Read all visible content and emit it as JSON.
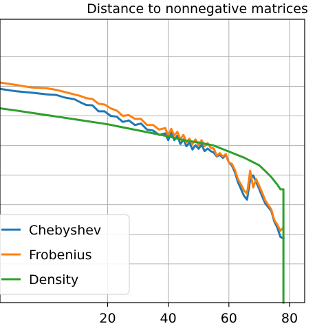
{
  "chart_data": {
    "type": "line",
    "title": "Distance to nonnegative matrices",
    "xlabel": "",
    "ylabel": "",
    "xlim": [
      -15.5,
      85
    ],
    "ylim": [
      -11.8,
      10.6
    ],
    "x_ticks": [
      20,
      40,
      60,
      80
    ],
    "x_tick_labels": [
      "20",
      "40",
      "60",
      "80"
    ],
    "y_gridlines": [
      7.64,
      5.3,
      2.96,
      0.62,
      -1.72,
      -4.06,
      -6.4,
      -8.74
    ],
    "grid": true,
    "legend": {
      "placement": "lower-left"
    },
    "series": [
      {
        "name": "Chebyshev",
        "color": "#1f77b4",
        "x": [
          -15.5,
          -10,
          -5,
          0,
          3,
          6,
          9,
          11,
          13,
          15,
          17,
          19,
          21,
          23,
          25,
          27,
          29,
          31,
          33,
          35,
          37,
          39,
          40,
          41,
          42,
          43,
          44,
          45,
          46,
          47,
          48,
          49,
          50,
          51,
          52,
          53,
          54,
          55,
          56,
          57,
          58,
          59,
          60,
          61,
          62,
          63,
          64,
          65,
          66,
          67,
          68,
          69,
          70,
          71,
          72,
          73,
          74,
          75,
          76,
          77,
          78
        ],
        "y": [
          5.1,
          4.9,
          4.8,
          4.66,
          4.62,
          4.4,
          4.28,
          4.04,
          3.82,
          3.8,
          3.32,
          3.32,
          2.96,
          2.9,
          2.48,
          2.6,
          2.24,
          2.36,
          1.88,
          1.8,
          1.46,
          1.58,
          1.04,
          1.64,
          1.04,
          1.4,
          0.74,
          1.1,
          0.56,
          0.86,
          0.3,
          0.64,
          0.36,
          0.68,
          0.18,
          0.38,
          0.18,
          0.06,
          -0.24,
          -0.12,
          -0.36,
          -0.12,
          -0.72,
          -0.96,
          -1.5,
          -2.28,
          -2.82,
          -3.36,
          -3.66,
          -2.1,
          -1.74,
          -2.28,
          -2.82,
          -3.42,
          -3.96,
          -4.26,
          -4.56,
          -5.4,
          -5.88,
          -6.6,
          -6.72
        ]
      },
      {
        "name": "Frobenius",
        "color": "#ff7f0e",
        "x": [
          -15.5,
          -10,
          -5,
          0,
          3,
          6,
          9,
          11,
          13,
          15,
          17,
          19,
          21,
          23,
          25,
          27,
          29,
          31,
          33,
          35,
          37,
          39,
          40,
          41,
          42,
          43,
          44,
          45,
          46,
          47,
          48,
          49,
          50,
          51,
          52,
          53,
          54,
          55,
          56,
          57,
          58,
          59,
          60,
          61,
          62,
          63,
          64,
          65,
          66,
          67,
          68,
          69,
          70,
          71,
          72,
          73,
          74,
          75,
          76,
          77,
          78
        ],
        "y": [
          5.6,
          5.4,
          5.2,
          5.14,
          5.02,
          4.84,
          4.66,
          4.54,
          4.36,
          4.3,
          3.92,
          3.86,
          3.56,
          3.38,
          2.96,
          3.02,
          2.72,
          2.72,
          2.24,
          2.24,
          1.88,
          2.0,
          1.4,
          1.94,
          1.4,
          1.7,
          1.1,
          1.46,
          0.86,
          1.16,
          0.74,
          1.1,
          0.62,
          1.04,
          0.56,
          0.8,
          0.44,
          0.38,
          -0.18,
          0.02,
          -0.24,
          -0.06,
          -0.72,
          -0.84,
          -1.32,
          -2.04,
          -2.46,
          -2.94,
          -3.18,
          -1.38,
          -2.7,
          -2.04,
          -2.58,
          -3.12,
          -3.72,
          -4.08,
          -4.44,
          -5.28,
          -5.64,
          -6.12,
          -5.88
        ]
      },
      {
        "name": "Density",
        "color": "#2ca02c",
        "x": [
          -15.5,
          -10,
          -5,
          0,
          5,
          10,
          15,
          20,
          25,
          30,
          35,
          40,
          45,
          50,
          55,
          60,
          65,
          70,
          72,
          74,
          76,
          77,
          78,
          78,
          78
        ],
        "y": [
          3.56,
          3.38,
          3.2,
          3.02,
          2.84,
          2.66,
          2.48,
          2.3,
          2.06,
          1.82,
          1.58,
          1.34,
          1.04,
          0.86,
          0.62,
          0.14,
          -0.34,
          -0.94,
          -1.4,
          -1.88,
          -2.48,
          -2.84,
          -2.84,
          -11.8,
          -11.8
        ]
      }
    ]
  }
}
